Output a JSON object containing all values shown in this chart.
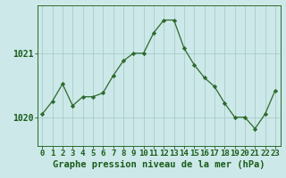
{
  "x": [
    0,
    1,
    2,
    3,
    4,
    5,
    6,
    7,
    8,
    9,
    10,
    11,
    12,
    13,
    14,
    15,
    16,
    17,
    18,
    19,
    20,
    21,
    22,
    23
  ],
  "y": [
    1020.05,
    1020.25,
    1020.52,
    1020.18,
    1020.32,
    1020.32,
    1020.38,
    1020.65,
    1020.88,
    1021.0,
    1021.0,
    1021.32,
    1021.52,
    1021.52,
    1021.08,
    1020.82,
    1020.62,
    1020.48,
    1020.22,
    1020.0,
    1020.0,
    1019.82,
    1020.05,
    1020.42
  ],
  "line_color": "#2d6a2d",
  "marker_color": "#2d6a2d",
  "bg_color": "#cce8e8",
  "plot_bg_color": "#cce8e8",
  "hgrid_color": "#aacccc",
  "vgrid_color": "#aacccc",
  "xlabel": "Graphe pression niveau de la mer (hPa)",
  "xlabel_color": "#1a5c1a",
  "tick_color": "#1a5c1a",
  "ylim": [
    1019.55,
    1021.75
  ],
  "yticks": [
    1020,
    1021
  ],
  "xticks": [
    0,
    1,
    2,
    3,
    4,
    5,
    6,
    7,
    8,
    9,
    10,
    11,
    12,
    13,
    14,
    15,
    16,
    17,
    18,
    19,
    20,
    21,
    22,
    23
  ],
  "xlabel_fontsize": 7.5,
  "tick_fontsize": 6.5,
  "ytick_fontsize": 7.0
}
